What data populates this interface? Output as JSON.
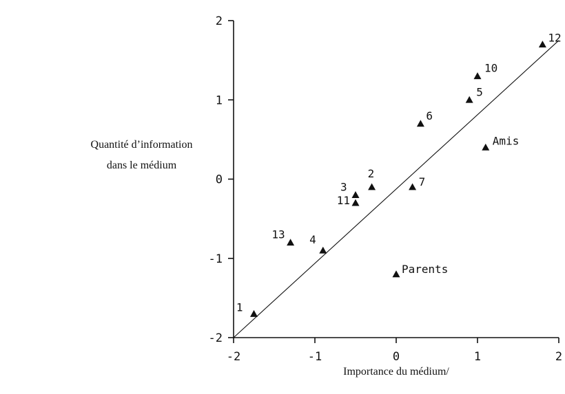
{
  "chart_data": {
    "type": "scatter",
    "xlabel": "Importance du médium/",
    "ylabel_lines": [
      "Quantité d’information",
      "dans le médium"
    ],
    "xlim": [
      -2,
      2
    ],
    "ylim": [
      -2,
      2
    ],
    "x_ticks": [
      -2,
      -1,
      0,
      1,
      2
    ],
    "y_ticks": [
      -2,
      -1,
      0,
      1,
      2
    ],
    "x_tick_labels": [
      "-2",
      "-1",
      "0",
      "1",
      "2"
    ],
    "y_tick_labels": [
      "-2",
      "-1",
      "0",
      "1",
      "2"
    ],
    "grid": false,
    "marker": "triangle",
    "points": [
      {
        "label": "1",
        "x": -1.75,
        "y": -1.7
      },
      {
        "label": "2",
        "x": -0.3,
        "y": -0.1
      },
      {
        "label": "3",
        "x": -0.5,
        "y": -0.2
      },
      {
        "label": "4",
        "x": -0.9,
        "y": -0.9
      },
      {
        "label": "5",
        "x": 0.9,
        "y": 1.0
      },
      {
        "label": "6",
        "x": 0.3,
        "y": 0.7
      },
      {
        "label": "7",
        "x": 0.2,
        "y": -0.1
      },
      {
        "label": "10",
        "x": 1.0,
        "y": 1.3
      },
      {
        "label": "11",
        "x": -0.5,
        "y": -0.3
      },
      {
        "label": "12",
        "x": 1.8,
        "y": 1.7
      },
      {
        "label": "13",
        "x": -1.3,
        "y": -0.8
      },
      {
        "label": "Amis",
        "x": 1.1,
        "y": 0.4
      },
      {
        "label": "Parents",
        "x": 0.0,
        "y": -1.2
      }
    ],
    "fit_line": {
      "x": [
        -2,
        2
      ],
      "y": [
        -2,
        1.75
      ]
    }
  }
}
